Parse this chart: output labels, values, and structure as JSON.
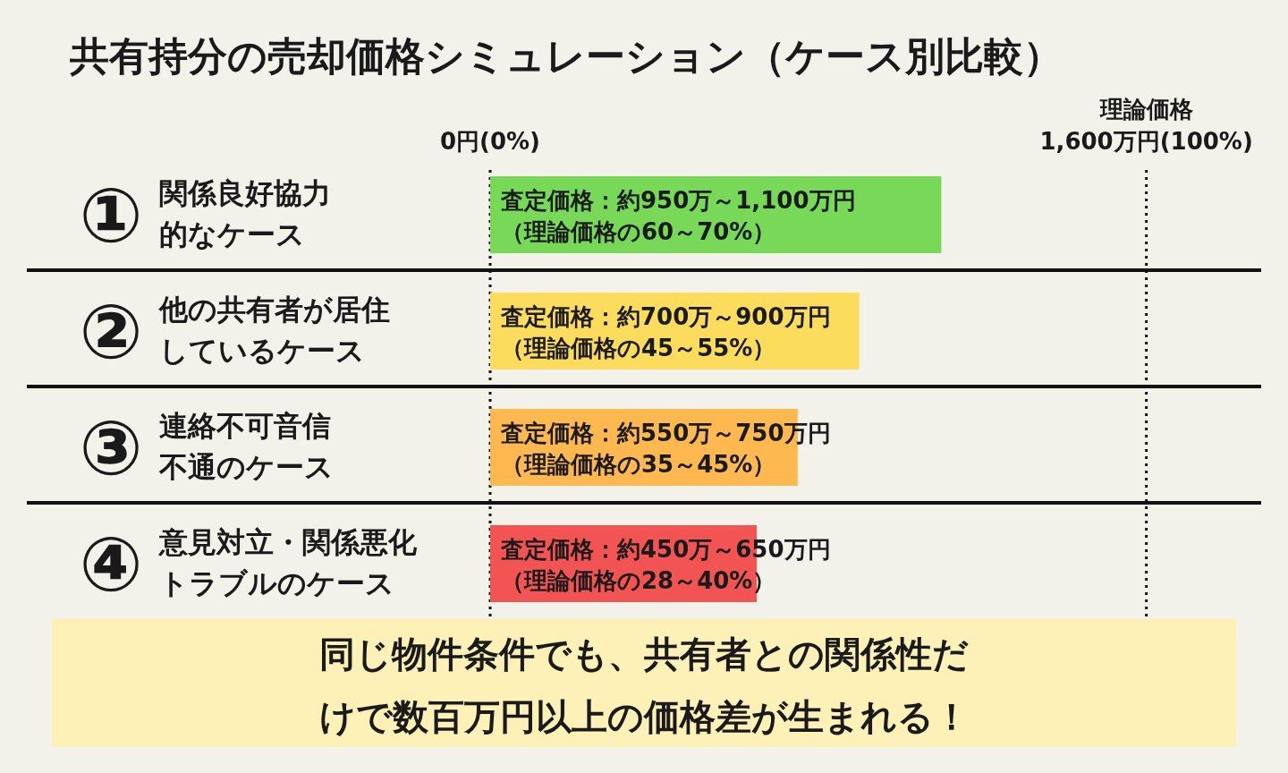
{
  "chart_data": {
    "type": "bar",
    "orientation": "horizontal",
    "title": "共有持分の売却価格シミュレーション（ケース別比較）",
    "categories": [
      "関係良好協力的なケース",
      "他の共有者が居住しているケース",
      "連絡不可音信不通のケース",
      "意見対立・関係悪化トラブルのケース"
    ],
    "values": [
      1100,
      900,
      750,
      650
    ],
    "colors": [
      "#77d957",
      "#fcdc5c",
      "#fdb84f",
      "#f25454"
    ],
    "value_labels": [
      "査定価格：約950万～1,100万円（理論価格の60～70%）",
      "査定価格：約700万～900万円（理論価格の45～55%）",
      "査定価格：約550万～750万円（理論価格の35～45%）",
      "査定価格：約450万～650万円（理論価格の28～40%）"
    ],
    "xlim": [
      0,
      1880
    ],
    "ref_lines": [
      {
        "axis": "x",
        "value": 0,
        "label": "0円(0%)",
        "line_style": "dotted"
      },
      {
        "axis": "x",
        "value": 1600,
        "label": "理論価格1,600万円(100%)",
        "line_style": "dotted"
      }
    ],
    "grid": "y",
    "annotations": [
      "①",
      "②",
      "③",
      "④",
      "同じ物件条件でも、共有者との関係性だけで数百万円以上の価格差が生まれる！"
    ]
  }
}
